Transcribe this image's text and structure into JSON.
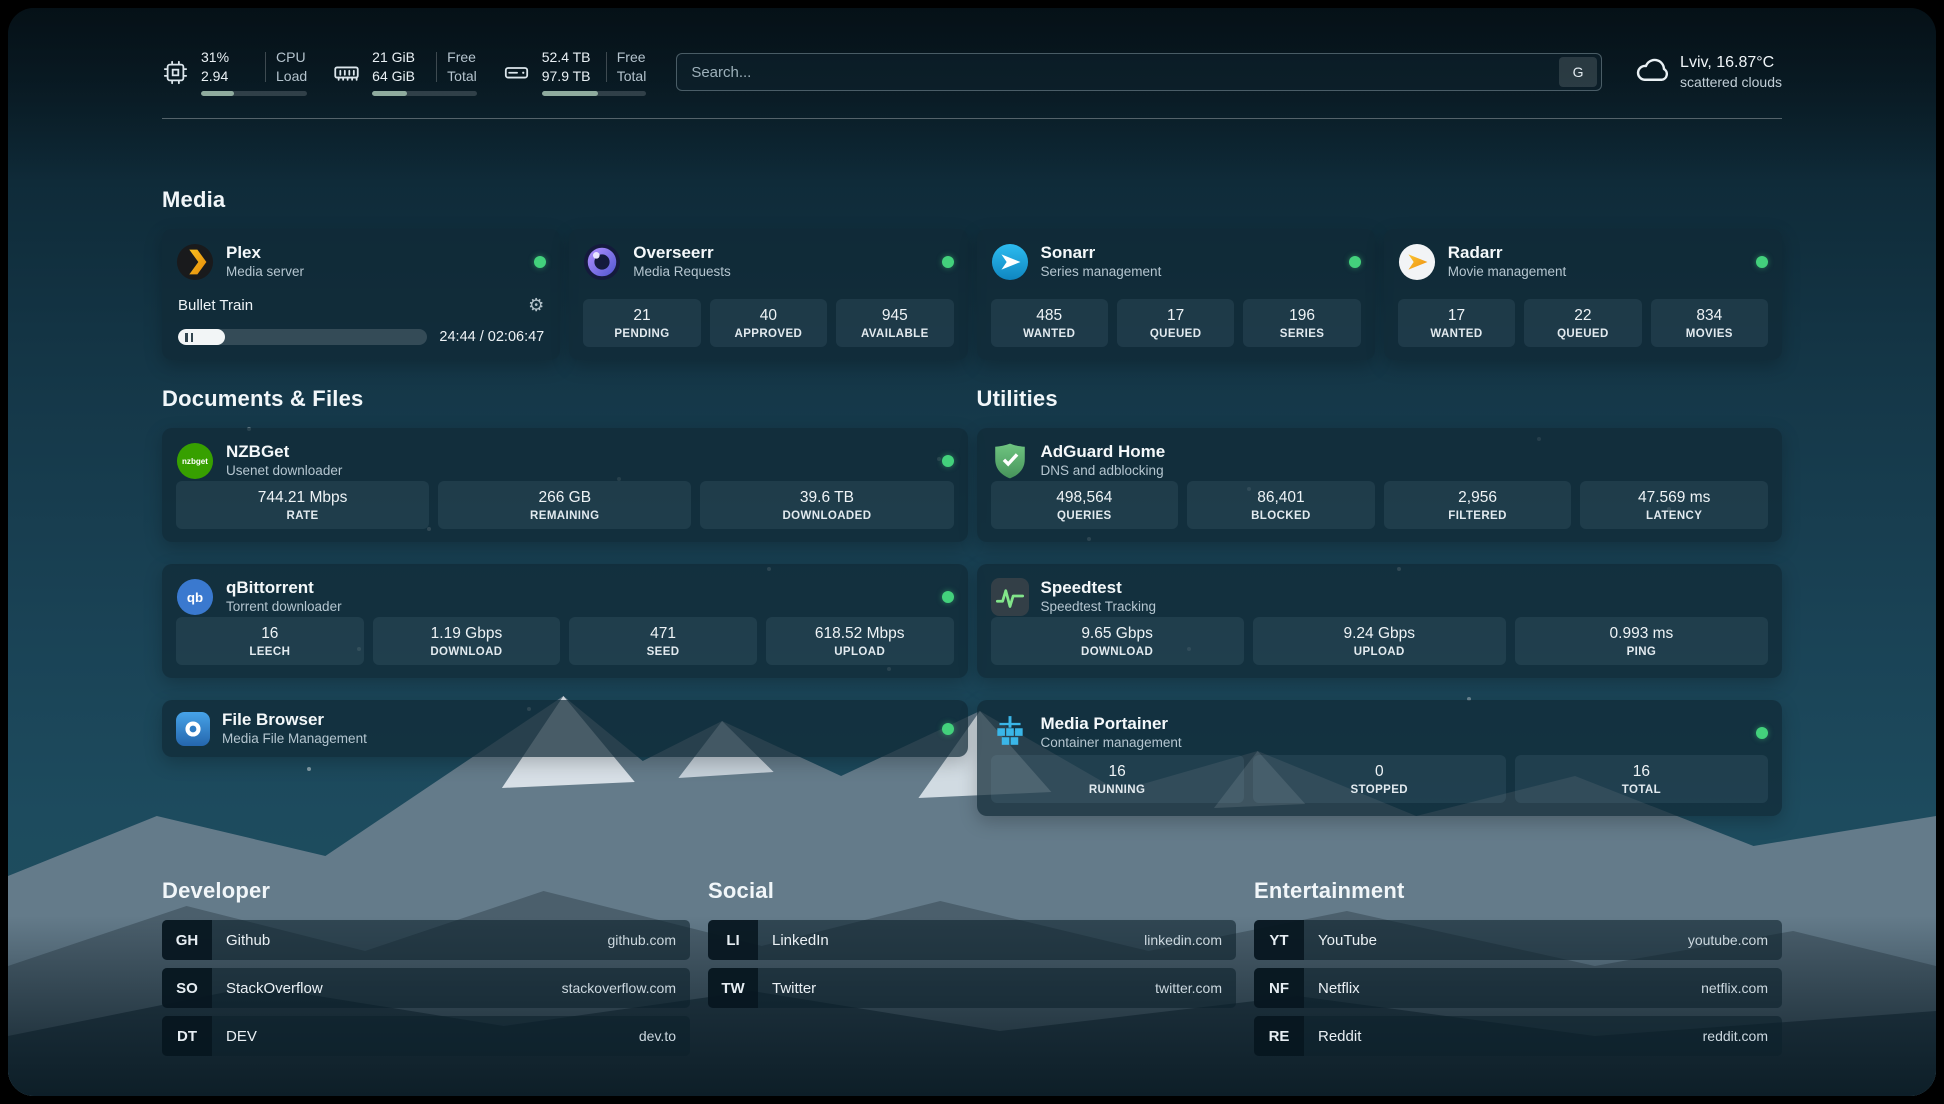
{
  "topbar": {
    "cpu": {
      "value_top": "31%",
      "value_bottom": "2.94",
      "label_top": "CPU",
      "label_bottom": "Load",
      "progress": 31
    },
    "memory": {
      "value_top": "21 GiB",
      "value_bottom": "64 GiB",
      "label_top": "Free",
      "label_bottom": "Total",
      "progress": 33
    },
    "disk": {
      "value_top": "52.4 TB",
      "value_bottom": "97.9 TB",
      "label_top": "Free",
      "label_bottom": "Total",
      "progress": 54
    },
    "search": {
      "placeholder": "Search...",
      "engine_label": "G"
    },
    "weather": {
      "location": "Lviv, 16.87°C",
      "condition": "scattered clouds"
    }
  },
  "sections": {
    "media": {
      "heading": "Media"
    },
    "documents": {
      "heading": "Documents & Files"
    },
    "utilities": {
      "heading": "Utilities"
    },
    "developer": {
      "heading": "Developer"
    },
    "social": {
      "heading": "Social"
    },
    "entertainment": {
      "heading": "Entertainment"
    }
  },
  "apps": {
    "plex": {
      "name": "Plex",
      "subtitle": "Media server",
      "now_playing": "Bullet Train",
      "time": "24:44 / 02:06:47",
      "progress": 19
    },
    "overseerr": {
      "name": "Overseerr",
      "subtitle": "Media Requests",
      "stats": [
        {
          "value": "21",
          "label": "PENDING"
        },
        {
          "value": "40",
          "label": "APPROVED"
        },
        {
          "value": "945",
          "label": "AVAILABLE"
        }
      ]
    },
    "sonarr": {
      "name": "Sonarr",
      "subtitle": "Series management",
      "stats": [
        {
          "value": "485",
          "label": "WANTED"
        },
        {
          "value": "17",
          "label": "QUEUED"
        },
        {
          "value": "196",
          "label": "SERIES"
        }
      ]
    },
    "radarr": {
      "name": "Radarr",
      "subtitle": "Movie management",
      "stats": [
        {
          "value": "17",
          "label": "WANTED"
        },
        {
          "value": "22",
          "label": "QUEUED"
        },
        {
          "value": "834",
          "label": "MOVIES"
        }
      ]
    },
    "nzbget": {
      "name": "NZBGet",
      "subtitle": "Usenet downloader",
      "stats": [
        {
          "value": "744.21 Mbps",
          "label": "RATE"
        },
        {
          "value": "266 GB",
          "label": "REMAINING"
        },
        {
          "value": "39.6 TB",
          "label": "DOWNLOADED"
        }
      ]
    },
    "qbittorrent": {
      "name": "qBittorrent",
      "subtitle": "Torrent downloader",
      "stats": [
        {
          "value": "16",
          "label": "LEECH"
        },
        {
          "value": "1.19 Gbps",
          "label": "DOWNLOAD"
        },
        {
          "value": "471",
          "label": "SEED"
        },
        {
          "value": "618.52 Mbps",
          "label": "UPLOAD"
        }
      ]
    },
    "filebrowser": {
      "name": "File Browser",
      "subtitle": "Media File Management"
    },
    "adguard": {
      "name": "AdGuard Home",
      "subtitle": "DNS and adblocking",
      "stats": [
        {
          "value": "498,564",
          "label": "QUERIES"
        },
        {
          "value": "86,401",
          "label": "BLOCKED"
        },
        {
          "value": "2,956",
          "label": "FILTERED"
        },
        {
          "value": "47.569 ms",
          "label": "LATENCY"
        }
      ]
    },
    "speedtest": {
      "name": "Speedtest",
      "subtitle": "Speedtest Tracking",
      "stats": [
        {
          "value": "9.65 Gbps",
          "label": "DOWNLOAD"
        },
        {
          "value": "9.24 Gbps",
          "label": "UPLOAD"
        },
        {
          "value": "0.993 ms",
          "label": "PING"
        }
      ]
    },
    "portainer": {
      "name": "Media Portainer",
      "subtitle": "Container management",
      "stats": [
        {
          "value": "16",
          "label": "RUNNING"
        },
        {
          "value": "0",
          "label": "STOPPED"
        },
        {
          "value": "16",
          "label": "TOTAL"
        }
      ]
    }
  },
  "bookmarks": {
    "developer": {
      "items": [
        {
          "abbr": "GH",
          "name": "Github",
          "url": "github.com"
        },
        {
          "abbr": "SO",
          "name": "StackOverflow",
          "url": "stackoverflow.com"
        },
        {
          "abbr": "DT",
          "name": "DEV",
          "url": "dev.to"
        }
      ]
    },
    "social": {
      "items": [
        {
          "abbr": "LI",
          "name": "LinkedIn",
          "url": "linkedin.com"
        },
        {
          "abbr": "TW",
          "name": "Twitter",
          "url": "twitter.com"
        }
      ]
    },
    "entertainment": {
      "items": [
        {
          "abbr": "YT",
          "name": "YouTube",
          "url": "youtube.com"
        },
        {
          "abbr": "NF",
          "name": "Netflix",
          "url": "netflix.com"
        },
        {
          "abbr": "RE",
          "name": "Reddit",
          "url": "reddit.com"
        }
      ]
    }
  },
  "colors": {
    "status_online": "#43d17c",
    "plex_accent": "#e5a00d",
    "overseerr_accent": "#7b6ef6",
    "sonarr_accent": "#1aa3e0",
    "radarr_accent": "#f7c331",
    "nzbget_accent": "#3fae22",
    "qbittorrent_accent": "#3a6fc4",
    "adguard_accent": "#67b279",
    "portainer_accent": "#39b5e8"
  }
}
